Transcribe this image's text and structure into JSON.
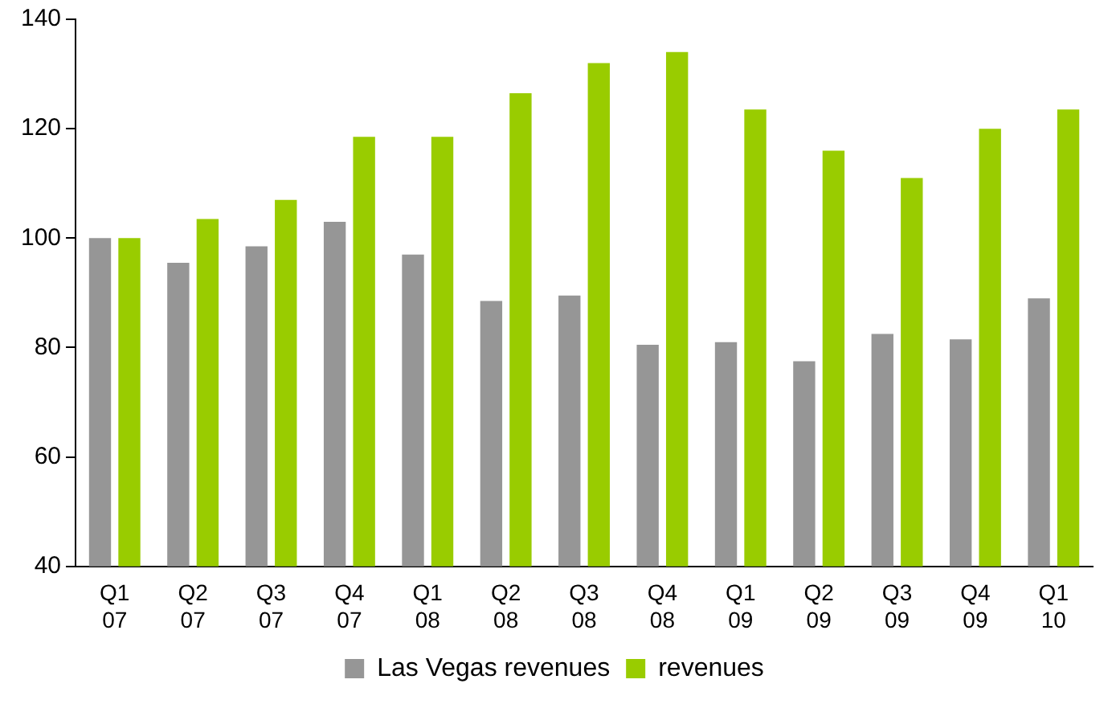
{
  "chart_data": {
    "type": "bar",
    "categories": [
      "Q1 07",
      "Q2 07",
      "Q3 07",
      "Q4 07",
      "Q1 08",
      "Q2 08",
      "Q3 08",
      "Q4 08",
      "Q1 09",
      "Q2 09",
      "Q3 09",
      "Q4 09",
      "Q1 10"
    ],
    "series": [
      {
        "name": "Las Vegas revenues",
        "color": "#969696",
        "values": [
          100,
          95.5,
          98.5,
          103,
          97,
          88.5,
          89.5,
          80.5,
          81,
          77.5,
          82.5,
          81.5,
          89
        ]
      },
      {
        "name": "revenues",
        "color": "#99cc00",
        "values": [
          100,
          103.5,
          107,
          118.5,
          118.5,
          126.5,
          132,
          134,
          123.5,
          116,
          111,
          120,
          123.5
        ]
      }
    ],
    "ylim": [
      40,
      140
    ],
    "yticks": [
      40,
      60,
      80,
      100,
      120,
      140
    ],
    "grid": false,
    "legend": "bottom"
  }
}
